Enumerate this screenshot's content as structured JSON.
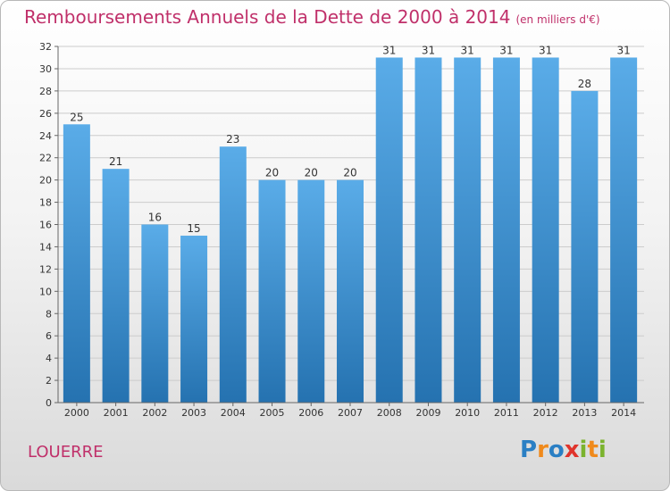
{
  "title": "Remboursements Annuels de la Dette de 2000 à 2014",
  "unit": "(en milliers d'€)",
  "place": "LOUERRE",
  "logo": [
    "P",
    "r",
    "o",
    "x",
    "i",
    "t",
    "i"
  ],
  "colors": {
    "bar_top": "#5aace8",
    "bar_bottom": "#2572b0",
    "title": "#c0306a",
    "grid": "#cccccc"
  },
  "chart_data": {
    "type": "bar",
    "title": "Remboursements Annuels de la Dette de 2000 à 2014",
    "ylabel": "en milliers d'€",
    "xlabel": "",
    "categories": [
      "2000",
      "2001",
      "2002",
      "2003",
      "2004",
      "2005",
      "2006",
      "2007",
      "2008",
      "2009",
      "2010",
      "2011",
      "2012",
      "2013",
      "2014"
    ],
    "values": [
      25,
      21,
      16,
      15,
      23,
      20,
      20,
      20,
      31,
      31,
      31,
      31,
      31,
      28,
      31
    ],
    "ylim": [
      0,
      32
    ],
    "yticks": [
      0,
      2,
      4,
      6,
      8,
      10,
      12,
      14,
      16,
      18,
      20,
      22,
      24,
      26,
      28,
      30,
      32
    ],
    "grid": true
  }
}
